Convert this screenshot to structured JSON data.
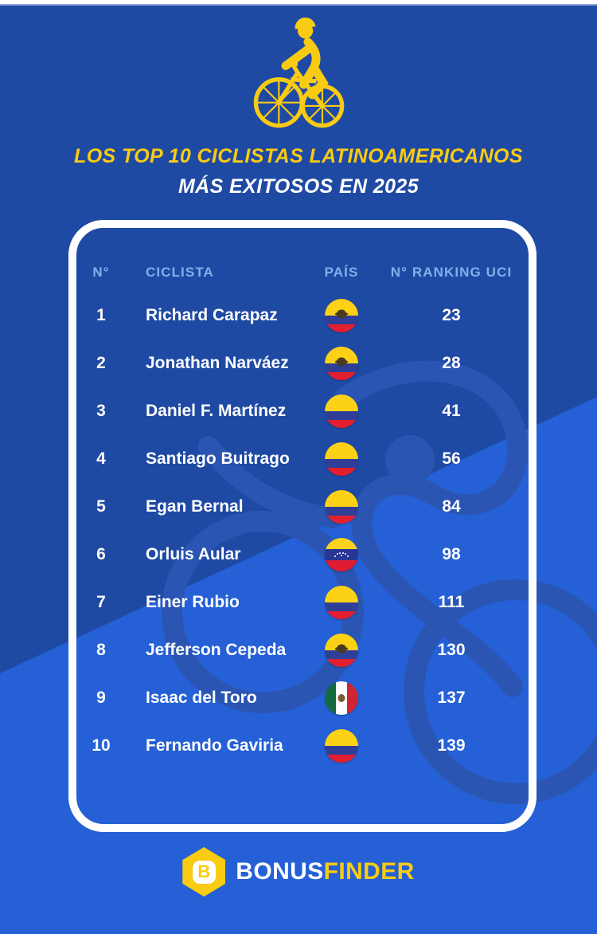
{
  "colors": {
    "background_dark": "#1f4aa4",
    "background_light": "#2560d6",
    "watermark_blue": "#2b55b2",
    "accent_yellow": "#f9cb12",
    "header_text_blue": "#7eb3e9",
    "text_white": "#ffffff"
  },
  "header": {
    "icon": "cyclist-icon",
    "title_line1": "LOS TOP 10 CICLISTAS LATINOAMERICANOS",
    "title_line2": "MÁS EXITOSOS EN 2025"
  },
  "table": {
    "columns": [
      {
        "label": "N°"
      },
      {
        "label": "CICLISTA"
      },
      {
        "label": "PAÍS"
      },
      {
        "label": "N° RANKING UCI"
      }
    ],
    "rows": [
      {
        "num": "1",
        "cyclist": "Richard Carapaz",
        "country": "ecuador",
        "ranking": "23"
      },
      {
        "num": "2",
        "cyclist": "Jonathan Narváez",
        "country": "ecuador",
        "ranking": "28"
      },
      {
        "num": "3",
        "cyclist": "Daniel F. Martínez",
        "country": "colombia",
        "ranking": "41"
      },
      {
        "num": "4",
        "cyclist": "Santiago Buitrago",
        "country": "colombia",
        "ranking": "56"
      },
      {
        "num": "5",
        "cyclist": "Egan Bernal",
        "country": "colombia",
        "ranking": "84"
      },
      {
        "num": "6",
        "cyclist": "Orluis Aular",
        "country": "venezuela",
        "ranking": "98"
      },
      {
        "num": "7",
        "cyclist": "Einer Rubio",
        "country": "colombia",
        "ranking": "111"
      },
      {
        "num": "8",
        "cyclist": "Jefferson Cepeda",
        "country": "ecuador",
        "ranking": "130"
      },
      {
        "num": "9",
        "cyclist": "Isaac del Toro",
        "country": "mexico",
        "ranking": "137"
      },
      {
        "num": "10",
        "cyclist": "Fernando Gaviria",
        "country": "colombia",
        "ranking": "139"
      }
    ]
  },
  "footer": {
    "logo_letter": "B",
    "brand_part1": "BONUS",
    "brand_part2": "FINDER"
  },
  "chart_data": {
    "type": "table",
    "title": "LOS TOP 10 CICLISTAS LATINOAMERICANOS MÁS EXITOSOS EN 2025",
    "columns": [
      "N°",
      "CICLISTA",
      "PAÍS",
      "N° RANKING UCI"
    ],
    "rows": [
      [
        1,
        "Richard Carapaz",
        "Ecuador",
        23
      ],
      [
        2,
        "Jonathan Narváez",
        "Ecuador",
        28
      ],
      [
        3,
        "Daniel F. Martínez",
        "Colombia",
        41
      ],
      [
        4,
        "Santiago Buitrago",
        "Colombia",
        56
      ],
      [
        5,
        "Egan Bernal",
        "Colombia",
        84
      ],
      [
        6,
        "Orluis Aular",
        "Venezuela",
        98
      ],
      [
        7,
        "Einer Rubio",
        "Colombia",
        111
      ],
      [
        8,
        "Jefferson Cepeda",
        "Ecuador",
        130
      ],
      [
        9,
        "Isaac del Toro",
        "México",
        137
      ],
      [
        10,
        "Fernando Gaviria",
        "Colombia",
        139
      ]
    ]
  }
}
